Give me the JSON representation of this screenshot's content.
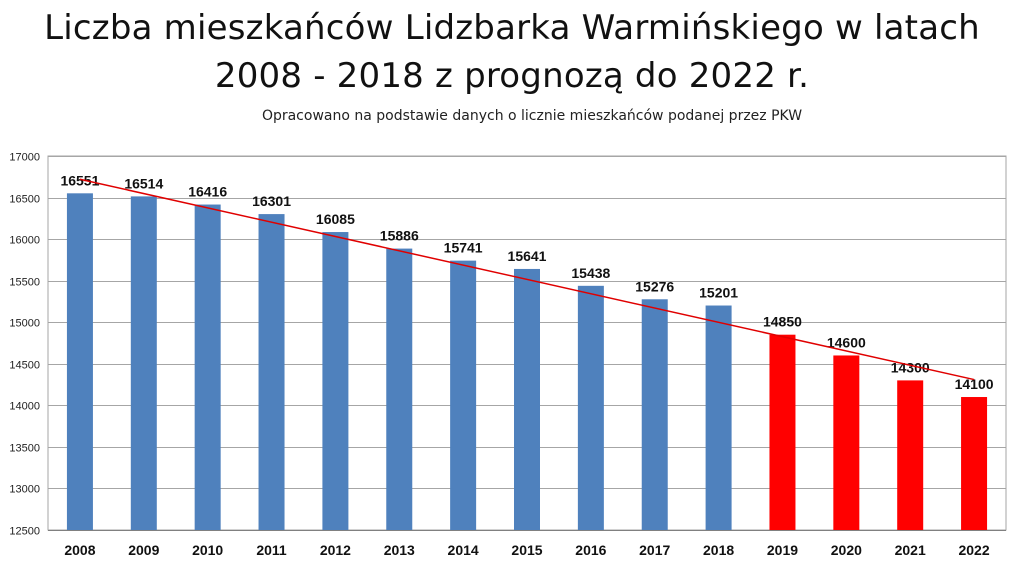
{
  "chart_data": {
    "type": "bar",
    "title_line1": "Liczba mieszkańców Lidzbarka Warmińskiego w latach",
    "title_line2": "2008 - 2018 z prognozą do 2022 r.",
    "subtitle": "Opracowano na podstawie danych o licznie mieszkańców podanej przez PKW",
    "xlabel": "",
    "ylabel": "",
    "categories": [
      "2008",
      "2009",
      "2010",
      "2011",
      "2012",
      "2013",
      "2014",
      "2015",
      "2016",
      "2017",
      "2018",
      "2019",
      "2020",
      "2021",
      "2022"
    ],
    "values": [
      16551,
      16514,
      16416,
      16301,
      16085,
      15886,
      15741,
      15641,
      15438,
      15276,
      15201,
      14850,
      14600,
      14300,
      14100
    ],
    "ylim": [
      12500,
      17000
    ],
    "yticks": [
      12500,
      13000,
      13500,
      14000,
      14500,
      15000,
      15500,
      16000,
      16500,
      17000
    ],
    "grid": true,
    "legend": "none",
    "colors": {
      "actual": "#4f81bd",
      "forecast": "#ff0000",
      "trendline": "#e00000",
      "grid": "#a6a6a6"
    },
    "forecast_start_index": 11,
    "trendline": {
      "start_value": 16720,
      "end_value": 14310
    }
  }
}
